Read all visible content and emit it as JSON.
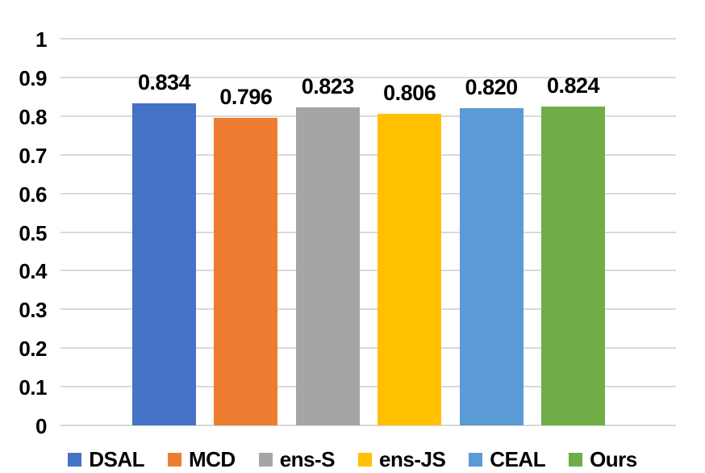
{
  "chart_data": {
    "type": "bar",
    "categories": [
      "DSAL",
      "MCD",
      "ens-S",
      "ens-JS",
      "CEAL",
      "Ours"
    ],
    "values": [
      0.834,
      0.796,
      0.823,
      0.806,
      0.82,
      0.824
    ],
    "value_labels": [
      "0.834",
      "0.796",
      "0.823",
      "0.806",
      "0.820",
      "0.824"
    ],
    "bar_colors": [
      "#4472C4",
      "#ED7D31",
      "#A5A5A5",
      "#FFC000",
      "#5B9BD5",
      "#70AD47"
    ],
    "title": "",
    "xlabel": "",
    "ylabel": "",
    "ylim": [
      0,
      1
    ],
    "yticks": [
      0,
      0.1,
      0.2,
      0.3,
      0.4,
      0.5,
      0.6,
      0.7,
      0.8,
      0.9,
      1
    ],
    "ytick_labels": [
      "0",
      "0.1",
      "0.2",
      "0.3",
      "0.4",
      "0.5",
      "0.6",
      "0.7",
      "0.8",
      "0.9",
      "1"
    ],
    "grid": "horizontal",
    "gridline_color": "#D9D9D9",
    "text_color": "#000000",
    "legend_position": "bottom"
  }
}
